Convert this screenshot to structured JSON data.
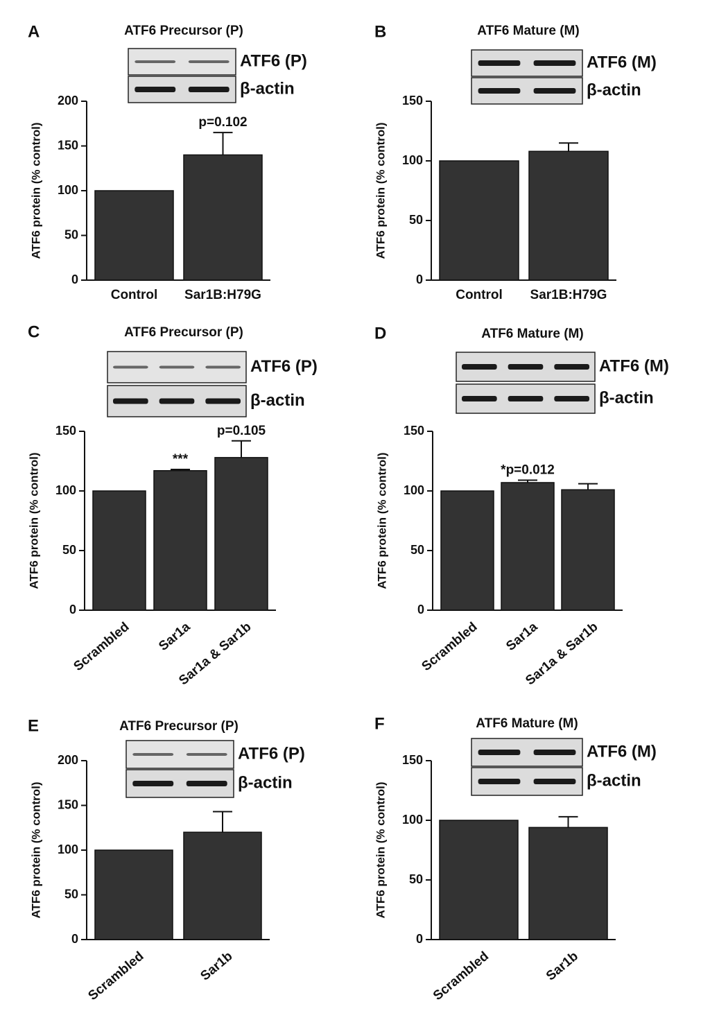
{
  "chart_data": [
    {
      "type": "bar",
      "panel": "A",
      "title": "ATF6 Precursor (P)",
      "blot_labels": [
        "ATF6 (P)",
        "β-actin"
      ],
      "ylabel": "ATF6 protein (% control)",
      "categories": [
        "Control",
        "Sar1B:H79G"
      ],
      "values": [
        100,
        140
      ],
      "errors": [
        0,
        25
      ],
      "value_annotations": [
        null,
        "p=0.102"
      ],
      "color": "#333333",
      "ylim": [
        0,
        200
      ],
      "yticks": [
        0,
        50,
        100,
        150,
        200
      ]
    },
    {
      "type": "bar",
      "panel": "B",
      "title": "ATF6 Mature (M)",
      "blot_labels": [
        "ATF6 (M)",
        "β-actin"
      ],
      "ylabel": "ATF6 protein (% control)",
      "categories": [
        "Control",
        "Sar1B:H79G"
      ],
      "values": [
        100,
        108
      ],
      "errors": [
        0,
        7
      ],
      "value_annotations": [
        null,
        null
      ],
      "color": "#333333",
      "ylim": [
        0,
        150
      ],
      "yticks": [
        0,
        50,
        100,
        150
      ]
    },
    {
      "type": "bar",
      "panel": "C",
      "title": "ATF6 Precursor (P)",
      "blot_labels": [
        "ATF6 (P)",
        "β-actin"
      ],
      "ylabel": "ATF6 protein (% control)",
      "categories": [
        "Scrambled",
        "Sar1a",
        "Sar1a & Sar1b"
      ],
      "values": [
        100,
        117,
        128
      ],
      "errors": [
        0,
        1,
        14
      ],
      "value_annotations": [
        null,
        "***",
        "p=0.105"
      ],
      "color": "#333333",
      "ylim": [
        0,
        150
      ],
      "yticks": [
        0,
        50,
        100,
        150
      ]
    },
    {
      "type": "bar",
      "panel": "D",
      "title": "ATF6 Mature (M)",
      "blot_labels": [
        "ATF6 (M)",
        "β-actin"
      ],
      "ylabel": "ATF6 protein (% control)",
      "categories": [
        "Scrambled",
        "Sar1a",
        "Sar1a & Sar1b"
      ],
      "values": [
        100,
        107,
        101
      ],
      "errors": [
        0,
        2,
        5
      ],
      "value_annotations": [
        null,
        "*p=0.012",
        null
      ],
      "color": "#333333",
      "ylim": [
        0,
        150
      ],
      "yticks": [
        0,
        50,
        100,
        150
      ]
    },
    {
      "type": "bar",
      "panel": "E",
      "title": "ATF6 Precursor (P)",
      "blot_labels": [
        "ATF6 (P)",
        "β-actin"
      ],
      "ylabel": "ATF6 protein (% control)",
      "categories": [
        "Scrambled",
        "Sar1b"
      ],
      "values": [
        100,
        120
      ],
      "errors": [
        0,
        23
      ],
      "value_annotations": [
        null,
        null
      ],
      "color": "#333333",
      "ylim": [
        0,
        200
      ],
      "yticks": [
        0,
        50,
        100,
        150,
        200
      ]
    },
    {
      "type": "bar",
      "panel": "F",
      "title": "ATF6 Mature (M)",
      "blot_labels": [
        "ATF6 (M)",
        "β-actin"
      ],
      "ylabel": "ATF6 protein (% control)",
      "categories": [
        "Scrambled",
        "Sar1b"
      ],
      "values": [
        100,
        94
      ],
      "errors": [
        0,
        9
      ],
      "value_annotations": [
        null,
        null
      ],
      "color": "#333333",
      "ylim": [
        0,
        150
      ],
      "yticks": [
        0,
        50,
        100,
        150
      ]
    }
  ]
}
